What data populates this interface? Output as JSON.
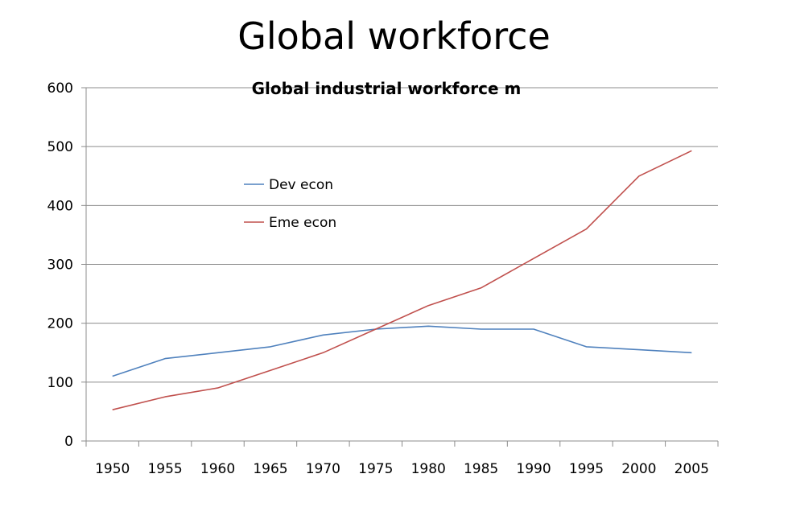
{
  "page": {
    "title": "Global workforce"
  },
  "chart_data": {
    "type": "line",
    "title": "Global industrial workforce m",
    "xlabel": "",
    "ylabel": "",
    "x": [
      "1950",
      "1955",
      "1960",
      "1965",
      "1970",
      "1975",
      "1980",
      "1985",
      "1990",
      "1995",
      "2000",
      "2005"
    ],
    "ylim": [
      0,
      600
    ],
    "yticks": [
      "0",
      "100",
      "200",
      "300",
      "400",
      "500",
      "600"
    ],
    "grid": true,
    "legend_position": "top-left",
    "series": [
      {
        "name": "Dev econ",
        "color": "#4f81bd",
        "values": [
          110,
          140,
          150,
          160,
          180,
          190,
          195,
          190,
          190,
          160,
          155,
          150
        ]
      },
      {
        "name": "Eme econ",
        "color": "#c0504d",
        "values": [
          53,
          75,
          90,
          120,
          150,
          190,
          230,
          260,
          310,
          360,
          450,
          493
        ]
      }
    ]
  }
}
